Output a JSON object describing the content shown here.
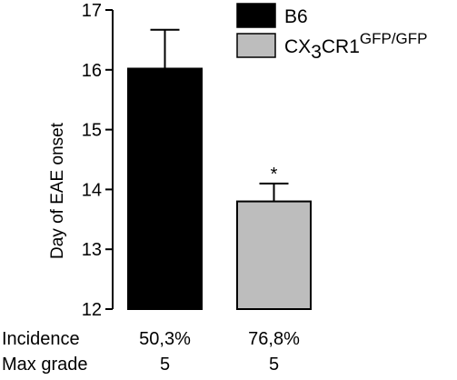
{
  "chart_data": {
    "type": "bar",
    "ylabel": "Day of  EAE onset",
    "ylim": [
      12,
      17
    ],
    "yticks": [
      "12",
      "13",
      "14",
      "15",
      "16",
      "17"
    ],
    "categories": [
      "B6",
      "CX3CR1 GFP/GFP"
    ],
    "values": [
      16.02,
      13.8
    ],
    "error_upper": [
      16.67,
      14.1
    ],
    "bar_colors": [
      "#000000",
      "#bdbdbd"
    ],
    "significance": [
      "",
      "*"
    ],
    "legend": {
      "placement": "top-right",
      "entries": [
        {
          "label": "B6",
          "color": "#000000"
        },
        {
          "label_main": "CX",
          "label_sub": "3",
          "label_tail": "CR1",
          "label_sup": "GFP/GFP",
          "color": "#bdbdbd"
        }
      ]
    },
    "table": {
      "row_labels": [
        "Incidence",
        "Max grade"
      ],
      "rows": [
        [
          "50,3%",
          "76,8%"
        ],
        [
          "5",
          "5"
        ]
      ]
    }
  }
}
